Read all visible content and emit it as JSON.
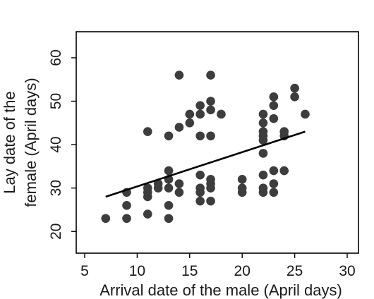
{
  "chart_data": {
    "type": "scatter",
    "xlabel": "Arrival date of the male (April days)",
    "ylabel_lines": [
      "Lay date of the",
      "female (April days)"
    ],
    "xlim": [
      5,
      30
    ],
    "ylim": [
      15,
      66
    ],
    "xticks": [
      5,
      10,
      15,
      20,
      25,
      30
    ],
    "yticks": [
      20,
      30,
      40,
      50,
      60
    ],
    "grid": false,
    "legend": "none",
    "point_color": "#3d3d3d",
    "line_color": "#000000",
    "points": [
      {
        "x": 7,
        "y": 23
      },
      {
        "x": 9,
        "y": 23
      },
      {
        "x": 9,
        "y": 26
      },
      {
        "x": 9,
        "y": 29
      },
      {
        "x": 11,
        "y": 24
      },
      {
        "x": 11,
        "y": 28
      },
      {
        "x": 11,
        "y": 29
      },
      {
        "x": 11,
        "y": 30
      },
      {
        "x": 11,
        "y": 43
      },
      {
        "x": 12,
        "y": 30
      },
      {
        "x": 12,
        "y": 31
      },
      {
        "x": 13,
        "y": 23
      },
      {
        "x": 13,
        "y": 26
      },
      {
        "x": 13,
        "y": 30
      },
      {
        "x": 13,
        "y": 32
      },
      {
        "x": 13,
        "y": 34
      },
      {
        "x": 13,
        "y": 42
      },
      {
        "x": 14,
        "y": 29
      },
      {
        "x": 14,
        "y": 31
      },
      {
        "x": 14,
        "y": 44
      },
      {
        "x": 14,
        "y": 56
      },
      {
        "x": 15,
        "y": 45
      },
      {
        "x": 15,
        "y": 47
      },
      {
        "x": 16,
        "y": 27
      },
      {
        "x": 16,
        "y": 29
      },
      {
        "x": 16,
        "y": 30
      },
      {
        "x": 16,
        "y": 33
      },
      {
        "x": 16,
        "y": 42
      },
      {
        "x": 16,
        "y": 47
      },
      {
        "x": 16,
        "y": 49
      },
      {
        "x": 17,
        "y": 27
      },
      {
        "x": 17,
        "y": 30
      },
      {
        "x": 17,
        "y": 31
      },
      {
        "x": 17,
        "y": 32
      },
      {
        "x": 17,
        "y": 42
      },
      {
        "x": 17,
        "y": 48
      },
      {
        "x": 17,
        "y": 50
      },
      {
        "x": 17,
        "y": 56
      },
      {
        "x": 18,
        "y": 47
      },
      {
        "x": 20,
        "y": 29
      },
      {
        "x": 20,
        "y": 30
      },
      {
        "x": 20,
        "y": 32
      },
      {
        "x": 22,
        "y": 29
      },
      {
        "x": 22,
        "y": 30
      },
      {
        "x": 22,
        "y": 33
      },
      {
        "x": 22,
        "y": 38
      },
      {
        "x": 22,
        "y": 41
      },
      {
        "x": 22,
        "y": 42
      },
      {
        "x": 22,
        "y": 43
      },
      {
        "x": 22,
        "y": 45
      },
      {
        "x": 22,
        "y": 47
      },
      {
        "x": 23,
        "y": 29
      },
      {
        "x": 23,
        "y": 31
      },
      {
        "x": 23,
        "y": 34
      },
      {
        "x": 23,
        "y": 46
      },
      {
        "x": 23,
        "y": 49
      },
      {
        "x": 23,
        "y": 51
      },
      {
        "x": 24,
        "y": 34
      },
      {
        "x": 24,
        "y": 42
      },
      {
        "x": 24,
        "y": 43
      },
      {
        "x": 25,
        "y": 51
      },
      {
        "x": 25,
        "y": 53
      },
      {
        "x": 26,
        "y": 47
      }
    ],
    "fit_line": {
      "x1": 7,
      "y1": 28,
      "x2": 26,
      "y2": 43
    }
  }
}
